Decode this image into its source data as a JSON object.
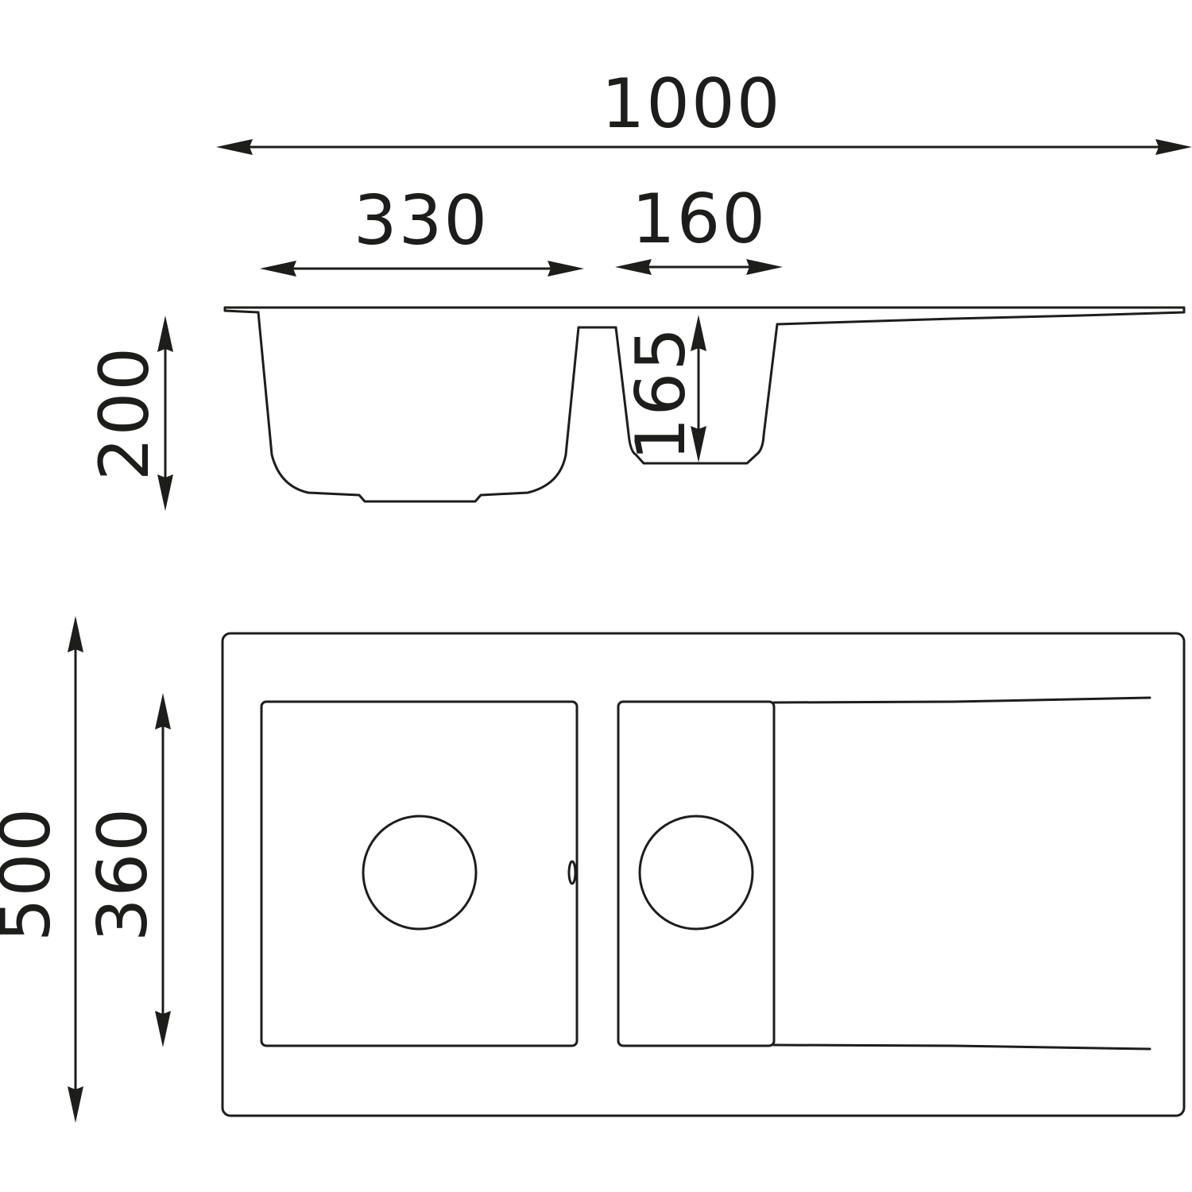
{
  "dimensions": {
    "overall_length": "1000",
    "bowl_large_width": "330",
    "bowl_small_width": "160",
    "bowl_large_depth": "200",
    "bowl_small_depth": "165",
    "overall_width": "500",
    "bowl_inner_width": "360"
  },
  "colors": {
    "line": "#1d1d1b",
    "background": "#ffffff"
  }
}
